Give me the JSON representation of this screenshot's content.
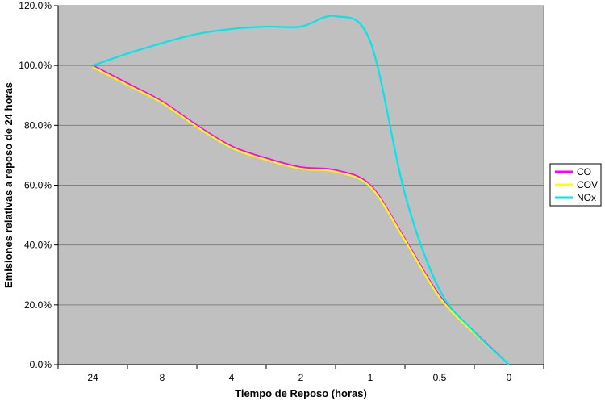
{
  "chart_data": {
    "type": "line",
    "title": "",
    "xlabel": "Tiempo de Reposo (horas)",
    "ylabel": "Emisiones relativas a reposo de 24 horas",
    "categories": [
      "24",
      "8",
      "4",
      "2",
      "1",
      "0.5",
      "0"
    ],
    "y_ticks": [
      "0.0%",
      "20.0%",
      "40.0%",
      "60.0%",
      "80.0%",
      "100.0%",
      "120.0%"
    ],
    "ylim": [
      0,
      120
    ],
    "grid": "horizontal",
    "legend_position": "right",
    "plot_background": "#c0c0c0",
    "series": [
      {
        "name": "CO",
        "color": "#ff00ff",
        "x": [
          0,
          0.5,
          1,
          1.5,
          2,
          2.5,
          3,
          3.5,
          4,
          4.5,
          5,
          5.5,
          6
        ],
        "y": [
          100,
          94,
          88,
          80,
          73,
          69,
          66,
          65,
          60,
          42,
          23,
          11,
          0
        ]
      },
      {
        "name": "COV",
        "color": "#ffff00",
        "x": [
          0,
          0.5,
          1,
          1.5,
          2,
          2.5,
          3,
          3.5,
          4,
          4.5,
          5,
          5.5,
          6
        ],
        "y": [
          99.5,
          93.5,
          87.5,
          79.5,
          72.5,
          68.5,
          65.5,
          64.5,
          59.5,
          41.5,
          22.5,
          10.5,
          0
        ]
      },
      {
        "name": "NOx",
        "color": "#00e5ee",
        "x": [
          0,
          0.5,
          1,
          1.5,
          2,
          2.5,
          3,
          3.5,
          4,
          4.5,
          5,
          5.5,
          6
        ],
        "y": [
          100,
          104,
          107.5,
          110.5,
          112.2,
          113,
          113,
          116.5,
          108,
          57,
          25,
          11,
          0
        ]
      }
    ]
  }
}
